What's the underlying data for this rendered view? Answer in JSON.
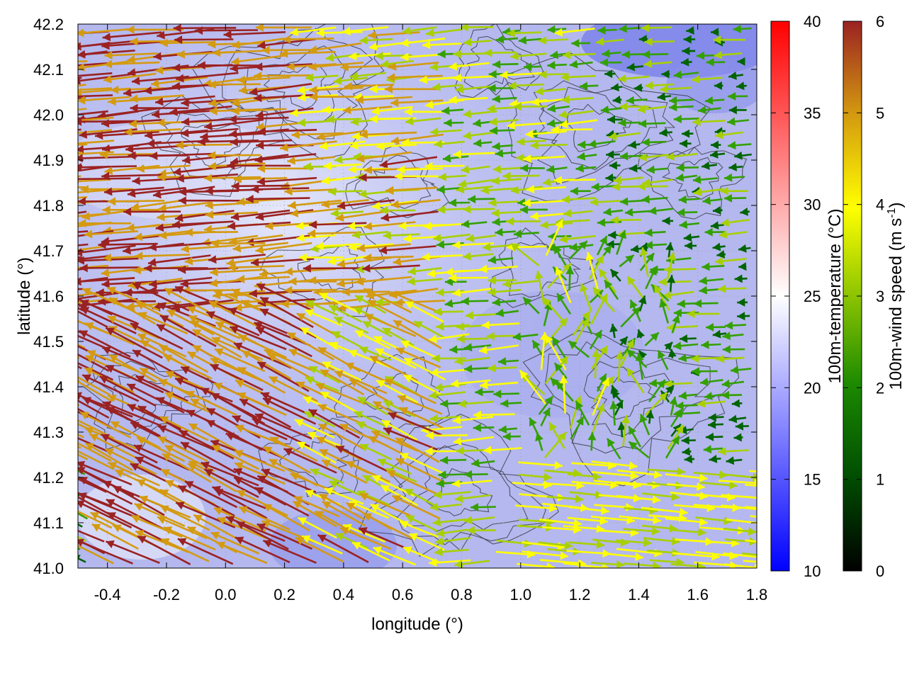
{
  "figure": {
    "xlabel": "longitude (°)",
    "ylabel": "latitude (°)",
    "xlim": [
      -0.5,
      1.8
    ],
    "ylim": [
      41.0,
      42.2
    ],
    "xticks": [
      "-0.4",
      "-0.2",
      "0.0",
      "0.2",
      "0.4",
      "0.6",
      "0.8",
      "1.0",
      "1.2",
      "1.4",
      "1.6",
      "1.8"
    ],
    "yticks": [
      "41.0",
      "41.1",
      "41.2",
      "41.3",
      "41.4",
      "41.5",
      "41.6",
      "41.7",
      "41.8",
      "41.9",
      "42.0",
      "42.1",
      "42.2"
    ],
    "grid": "dotted",
    "background": "temperature field (blue to white) with dark grey terrain contours",
    "vector_field": "wind arrows colored by speed"
  },
  "colorbars": {
    "temperature": {
      "label": "100m-temperature (°C)",
      "range": [
        10,
        40
      ],
      "ticks": [
        "10",
        "15",
        "20",
        "25",
        "30",
        "35",
        "40"
      ],
      "colors": [
        "#0000ff",
        "#ffffff",
        "#ff0000"
      ]
    },
    "wind": {
      "label_main": "100m-wind speed (m s",
      "label_sup": "-1",
      "label_end": ")",
      "range": [
        0,
        6
      ],
      "ticks": [
        "0",
        "1",
        "2",
        "3",
        "4",
        "5",
        "6"
      ],
      "colors": [
        "#000000",
        "#006400",
        "#33a000",
        "#a8d000",
        "#ffff00",
        "#d49a10",
        "#9a2222"
      ]
    }
  }
}
